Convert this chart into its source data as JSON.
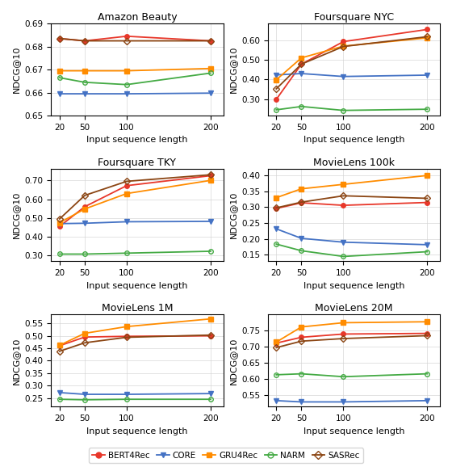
{
  "x": [
    20,
    50,
    100,
    200
  ],
  "subplots": [
    {
      "title": "Amazon Beauty",
      "ylim": [
        0.65,
        0.69
      ],
      "yticks": [
        0.65,
        0.66,
        0.67,
        0.68,
        0.69
      ],
      "series": {
        "BERT4Rec": [
          0.6835,
          0.6825,
          0.6845,
          0.6825
        ],
        "CORE": [
          0.6595,
          0.6595,
          0.6595,
          0.6598
        ],
        "GRU4Rec": [
          0.6695,
          0.6695,
          0.6695,
          0.6705
        ],
        "NARM": [
          0.6665,
          0.6645,
          0.6635,
          0.6685
        ],
        "SASRec": [
          0.6835,
          0.6825,
          0.6825,
          0.6825
        ]
      }
    },
    {
      "title": "Foursquare NYC",
      "ylim": [
        0.215,
        0.685
      ],
      "yticks": [
        0.3,
        0.4,
        0.5,
        0.6
      ],
      "series": {
        "BERT4Rec": [
          0.298,
          0.478,
          0.593,
          0.655
        ],
        "CORE": [
          0.423,
          0.43,
          0.415,
          0.422
        ],
        "GRU4Rec": [
          0.398,
          0.51,
          0.57,
          0.612
        ],
        "NARM": [
          0.245,
          0.262,
          0.242,
          0.248
        ],
        "SASRec": [
          0.352,
          0.478,
          0.568,
          0.618
        ]
      }
    },
    {
      "title": "Foursquare TKY",
      "ylim": [
        0.27,
        0.76
      ],
      "yticks": [
        0.3,
        0.4,
        0.5,
        0.6,
        0.7
      ],
      "series": {
        "BERT4Rec": [
          0.455,
          0.56,
          0.672,
          0.725
        ],
        "CORE": [
          0.47,
          0.472,
          0.48,
          0.482
        ],
        "GRU4Rec": [
          0.475,
          0.548,
          0.63,
          0.7
        ],
        "NARM": [
          0.308,
          0.308,
          0.313,
          0.323
        ],
        "SASRec": [
          0.495,
          0.62,
          0.695,
          0.73
        ]
      }
    },
    {
      "title": "MovieLens 100k",
      "ylim": [
        0.13,
        0.42
      ],
      "yticks": [
        0.15,
        0.2,
        0.25,
        0.3,
        0.35,
        0.4
      ],
      "series": {
        "BERT4Rec": [
          0.296,
          0.314,
          0.306,
          0.315
        ],
        "CORE": [
          0.232,
          0.202,
          0.19,
          0.182
        ],
        "GRU4Rec": [
          0.33,
          0.358,
          0.372,
          0.4
        ],
        "NARM": [
          0.184,
          0.163,
          0.145,
          0.16
        ],
        "SASRec": [
          0.298,
          0.316,
          0.336,
          0.328
        ]
      }
    },
    {
      "title": "MovieLens 1M",
      "ylim": [
        0.215,
        0.585
      ],
      "yticks": [
        0.25,
        0.3,
        0.35,
        0.4,
        0.45,
        0.5,
        0.55
      ],
      "series": {
        "BERT4Rec": [
          0.46,
          0.495,
          0.498,
          0.5
        ],
        "CORE": [
          0.272,
          0.265,
          0.265,
          0.268
        ],
        "GRU4Rec": [
          0.462,
          0.51,
          0.537,
          0.568
        ],
        "NARM": [
          0.245,
          0.243,
          0.245,
          0.245
        ],
        "SASRec": [
          0.438,
          0.472,
          0.494,
          0.503
        ]
      }
    },
    {
      "title": "MovieLens 20M",
      "ylim": [
        0.515,
        0.8
      ],
      "yticks": [
        0.55,
        0.6,
        0.65,
        0.7,
        0.75
      ],
      "series": {
        "BERT4Rec": [
          0.712,
          0.73,
          0.74,
          0.742
        ],
        "CORE": [
          0.534,
          0.53,
          0.53,
          0.534
        ],
        "GRU4Rec": [
          0.715,
          0.762,
          0.775,
          0.778
        ],
        "NARM": [
          0.614,
          0.617,
          0.608,
          0.617
        ],
        "SASRec": [
          0.698,
          0.718,
          0.726,
          0.735
        ]
      }
    }
  ],
  "colors": {
    "BERT4Rec": "#e8372a",
    "CORE": "#4472c4",
    "GRU4Rec": "#ff8c00",
    "NARM": "#44aa44",
    "SASRec": "#8b4513"
  },
  "markers": {
    "BERT4Rec": "o",
    "CORE": "v",
    "GRU4Rec": "s",
    "NARM": "o",
    "SASRec": "D"
  },
  "marker_facecolors": {
    "BERT4Rec": "#e8372a",
    "CORE": "#4472c4",
    "GRU4Rec": "#ff8c00",
    "NARM": "none",
    "SASRec": "none"
  },
  "ylabel": "NDCG@10",
  "xlabel": "Input sequence length"
}
